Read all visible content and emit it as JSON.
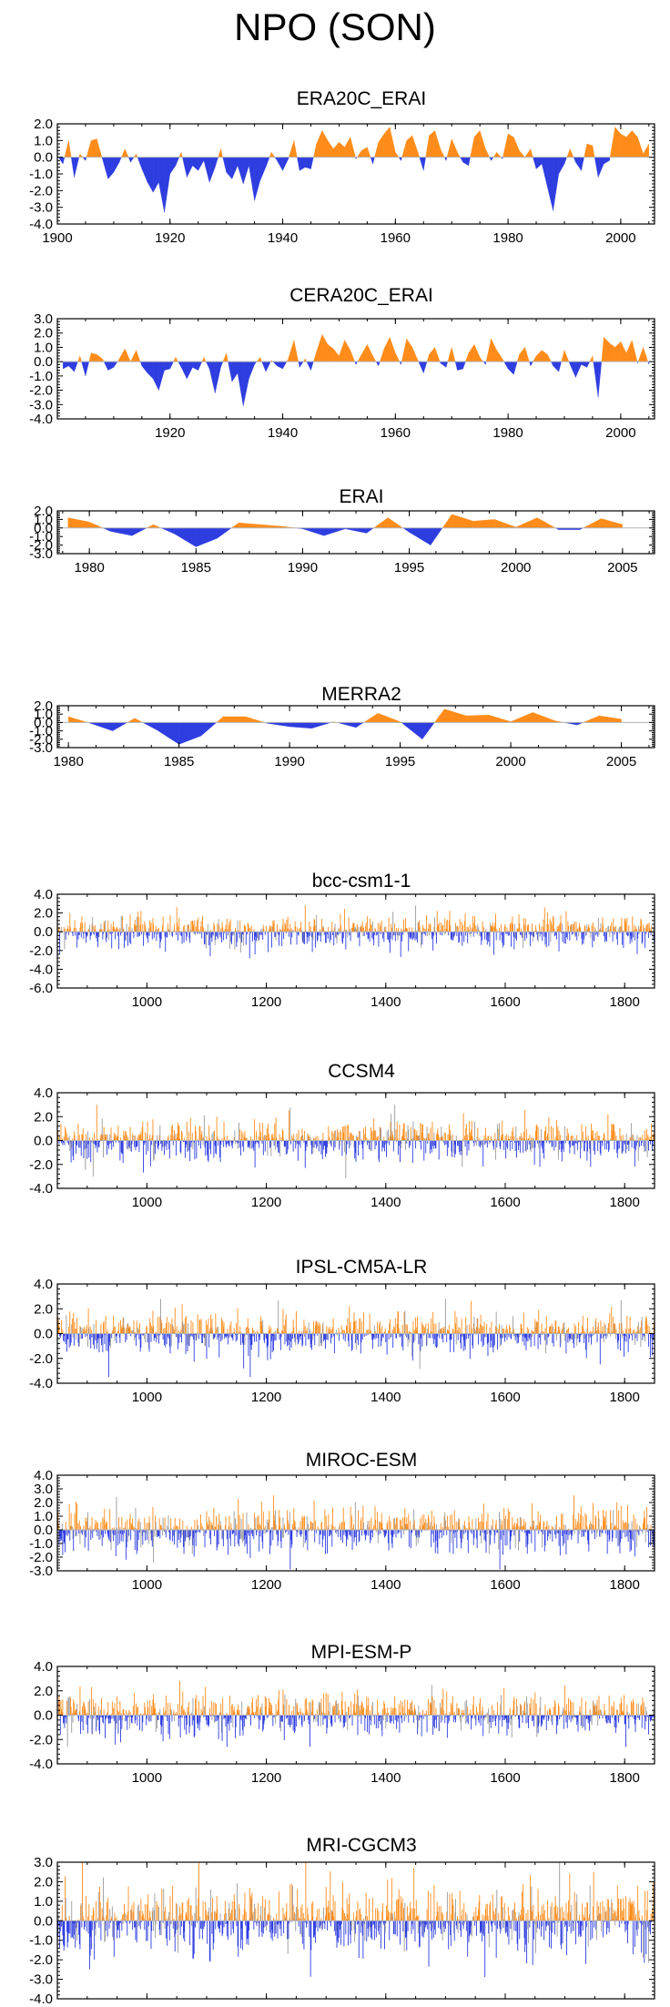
{
  "figure_title": "NPO (SON)",
  "colors": {
    "positive": "#ff8c1a",
    "negative": "#2e3de0",
    "axis": "#000000",
    "zero_line": "#b3b3b3"
  },
  "chart_data": [
    {
      "title": "ERA20C_ERAI",
      "type": "area",
      "xlim": [
        1900,
        2006
      ],
      "ylim": [
        -4.0,
        2.0
      ],
      "yticks": [
        "2.0",
        "1.0",
        "0.0",
        "-1.0",
        "-2.0",
        "-3.0",
        "-4.0"
      ],
      "xticks": [
        "1900",
        "1920",
        "1940",
        "1960",
        "1980",
        "2000"
      ],
      "x": [
        1900,
        1901,
        1902,
        1903,
        1904,
        1905,
        1906,
        1907,
        1908,
        1909,
        1910,
        1911,
        1912,
        1913,
        1914,
        1915,
        1916,
        1917,
        1918,
        1919,
        1920,
        1921,
        1922,
        1923,
        1924,
        1925,
        1926,
        1927,
        1928,
        1929,
        1930,
        1931,
        1932,
        1933,
        1934,
        1935,
        1936,
        1937,
        1938,
        1939,
        1940,
        1941,
        1942,
        1943,
        1944,
        1945,
        1946,
        1947,
        1948,
        1949,
        1950,
        1951,
        1952,
        1953,
        1954,
        1955,
        1956,
        1957,
        1958,
        1959,
        1960,
        1961,
        1962,
        1963,
        1964,
        1965,
        1966,
        1967,
        1968,
        1969,
        1970,
        1971,
        1972,
        1973,
        1974,
        1975,
        1976,
        1977,
        1978,
        1979,
        1980,
        1981,
        1982,
        1983,
        1984,
        1985,
        1986,
        1987,
        1988,
        1989,
        1990,
        1991,
        1992,
        1993,
        1994,
        1995,
        1996,
        1997,
        1998,
        1999,
        2000,
        2001,
        2002,
        2003,
        2004,
        2005
      ],
      "values": [
        0.1,
        -0.4,
        1.0,
        -1.2,
        0.2,
        -0.2,
        1.0,
        1.1,
        -0.1,
        -1.3,
        -0.9,
        -0.3,
        0.5,
        -0.3,
        0.2,
        -0.7,
        -1.5,
        -2.1,
        -1.5,
        -3.3,
        -1.0,
        -0.5,
        0.3,
        -1.2,
        -0.5,
        -0.8,
        -0.2,
        -1.5,
        -0.6,
        0.5,
        -0.9,
        -1.3,
        -0.5,
        -1.6,
        -0.5,
        -2.6,
        -1.4,
        -0.6,
        0.3,
        -0.2,
        -0.8,
        -0.1,
        1.0,
        -0.8,
        -0.6,
        -0.7,
        0.8,
        1.6,
        1.0,
        0.5,
        0.9,
        0.6,
        1.2,
        -0.1,
        0.4,
        0.6,
        -0.4,
        0.9,
        1.4,
        1.8,
        0.3,
        -0.2,
        1.0,
        1.3,
        0.3,
        -0.8,
        1.3,
        1.6,
        0.5,
        -0.2,
        1.1,
        0.3,
        -0.3,
        -0.5,
        1.2,
        1.6,
        0.5,
        -0.2,
        0.3,
        -0.1,
        1.4,
        1.2,
        0.4,
        0.0,
        0.5,
        -0.7,
        -0.4,
        -1.8,
        -3.2,
        -1.0,
        -0.4,
        0.5,
        -0.3,
        -0.8,
        0.8,
        0.7,
        -1.2,
        -0.4,
        -0.2,
        1.8,
        1.4,
        1.2,
        1.6,
        1.2,
        0.2,
        0.8
      ]
    },
    {
      "title": "CERA20C_ERAI",
      "type": "area",
      "xlim": [
        1900,
        2006
      ],
      "ylim": [
        -4.0,
        3.0
      ],
      "yticks": [
        "3.0",
        "2.0",
        "1.0",
        "0.0",
        "-1.0",
        "-2.0",
        "-3.0",
        "-4.0"
      ],
      "xticks": [
        "1920",
        "1940",
        "1960",
        "1980",
        "2000"
      ],
      "x": [
        1901,
        1902,
        1903,
        1904,
        1905,
        1906,
        1907,
        1908,
        1909,
        1910,
        1911,
        1912,
        1913,
        1914,
        1915,
        1916,
        1917,
        1918,
        1919,
        1920,
        1921,
        1922,
        1923,
        1924,
        1925,
        1926,
        1927,
        1928,
        1929,
        1930,
        1931,
        1932,
        1933,
        1934,
        1935,
        1936,
        1937,
        1938,
        1939,
        1940,
        1941,
        1942,
        1943,
        1944,
        1945,
        1946,
        1947,
        1948,
        1949,
        1950,
        1951,
        1952,
        1953,
        1954,
        1955,
        1956,
        1957,
        1958,
        1959,
        1960,
        1961,
        1962,
        1963,
        1964,
        1965,
        1966,
        1967,
        1968,
        1969,
        1970,
        1971,
        1972,
        1973,
        1974,
        1975,
        1976,
        1977,
        1978,
        1979,
        1980,
        1981,
        1982,
        1983,
        1984,
        1985,
        1986,
        1987,
        1988,
        1989,
        1990,
        1991,
        1992,
        1993,
        1994,
        1995,
        1996,
        1997,
        1998,
        1999,
        2000,
        2001,
        2002,
        2003,
        2004,
        2005
      ],
      "values": [
        -0.5,
        -0.3,
        -0.7,
        0.4,
        -1.0,
        0.6,
        0.5,
        0.2,
        -0.6,
        -0.4,
        0.2,
        0.9,
        0.0,
        0.8,
        -0.3,
        -0.8,
        -1.2,
        -2.0,
        -0.6,
        -0.5,
        0.3,
        -0.4,
        -1.2,
        -0.4,
        -0.6,
        0.3,
        -0.5,
        -2.2,
        -0.4,
        0.6,
        -1.4,
        -0.8,
        -3.1,
        -1.2,
        -0.2,
        0.3,
        -0.7,
        0.1,
        -0.3,
        -0.5,
        0.2,
        1.5,
        -0.4,
        0.2,
        -0.6,
        0.7,
        1.9,
        1.2,
        0.9,
        0.4,
        1.5,
        0.8,
        -0.2,
        0.5,
        1.2,
        0.4,
        -0.3,
        0.9,
        1.7,
        0.6,
        -0.2,
        1.6,
        1.0,
        0.1,
        -0.8,
        0.5,
        1.0,
        -0.1,
        -0.4,
        1.0,
        -0.6,
        -0.5,
        0.6,
        1.2,
        0.3,
        -0.2,
        1.6,
        0.8,
        0.2,
        -0.5,
        -0.9,
        0.5,
        1.0,
        -0.3,
        0.4,
        0.8,
        0.5,
        -0.3,
        -0.7,
        0.8,
        -0.2,
        -1.1,
        -0.2,
        -0.4,
        0.4,
        -2.5,
        1.7,
        1.3,
        1.0,
        1.4,
        0.6,
        1.5,
        -0.1,
        1.0,
        -0.2
      ]
    },
    {
      "title": "ERAI",
      "type": "area",
      "xlim": [
        1978.5,
        2006.5
      ],
      "ylim": [
        -3.0,
        2.0
      ],
      "yticks": [
        "2.0",
        "1.0",
        "0.0",
        "-1.0",
        "-2.0",
        "-3.0"
      ],
      "xticks": [
        "1980",
        "1985",
        "1990",
        "1995",
        "2000",
        "2005"
      ],
      "x": [
        1979,
        1980,
        1981,
        1982,
        1983,
        1984,
        1985,
        1986,
        1987,
        1988,
        1989,
        1990,
        1991,
        1992,
        1993,
        1994,
        1995,
        1996,
        1997,
        1998,
        1999,
        2000,
        2001,
        2002,
        2003,
        2004,
        2005
      ],
      "values": [
        1.2,
        0.7,
        -0.4,
        -0.9,
        0.4,
        -0.7,
        -2.2,
        -1.2,
        0.6,
        0.4,
        0.2,
        -0.1,
        -0.9,
        -0.1,
        -0.6,
        1.2,
        -0.5,
        -2.0,
        1.6,
        0.8,
        1.0,
        0.1,
        1.2,
        -0.2,
        -0.2,
        1.1,
        0.4
      ]
    },
    {
      "title": "MERRA2",
      "type": "area",
      "xlim": [
        1979.5,
        2006.5
      ],
      "ylim": [
        -3.0,
        2.0
      ],
      "yticks": [
        "2.0",
        "1.0",
        "0.0",
        "-1.0",
        "-2.0",
        "-3.0"
      ],
      "xticks": [
        "1980",
        "1985",
        "1990",
        "1995",
        "2000",
        "2005"
      ],
      "x": [
        1980,
        1981,
        1982,
        1983,
        1984,
        1985,
        1986,
        1987,
        1988,
        1989,
        1990,
        1991,
        1992,
        1993,
        1994,
        1995,
        1996,
        1997,
        1998,
        1999,
        2000,
        2001,
        2002,
        2003,
        2004,
        2005
      ],
      "values": [
        0.7,
        -0.1,
        -1.0,
        0.5,
        -0.9,
        -2.6,
        -1.6,
        0.7,
        0.7,
        -0.1,
        -0.5,
        -0.7,
        0.1,
        -0.6,
        1.1,
        0.1,
        -2.0,
        1.6,
        0.8,
        0.9,
        0.1,
        1.2,
        0.2,
        -0.3,
        0.8,
        0.4
      ]
    },
    {
      "title": "bcc-csm1-1",
      "type": "bar",
      "xlim": [
        850,
        1850
      ],
      "ylim": [
        -6.0,
        4.0
      ],
      "yticks": [
        "4.0",
        "2.0",
        "0.0",
        "-2.0",
        "-4.0",
        "-6.0"
      ],
      "xticks": [
        "1000",
        "1200",
        "1400",
        "1600",
        "1800"
      ],
      "series_length": 1001,
      "value_range_observed": [
        -5.8,
        2.8
      ]
    },
    {
      "title": "CCSM4",
      "type": "bar",
      "xlim": [
        850,
        1850
      ],
      "ylim": [
        -4.0,
        4.0
      ],
      "yticks": [
        "4.0",
        "2.0",
        "0.0",
        "-2.0",
        "-4.0"
      ],
      "xticks": [
        "1000",
        "1200",
        "1400",
        "1600",
        "1800"
      ],
      "series_length": 1001,
      "value_range_observed": [
        -3.2,
        3.0
      ]
    },
    {
      "title": "IPSL-CM5A-LR",
      "type": "bar",
      "xlim": [
        850,
        1850
      ],
      "ylim": [
        -4.0,
        4.0
      ],
      "yticks": [
        "4.0",
        "2.0",
        "0.0",
        "-2.0",
        "-4.0"
      ],
      "xticks": [
        "1000",
        "1200",
        "1400",
        "1600",
        "1800"
      ],
      "series_length": 1001,
      "value_range_observed": [
        -3.5,
        2.8
      ]
    },
    {
      "title": "MIROC-ESM",
      "type": "bar",
      "xlim": [
        850,
        1850
      ],
      "ylim": [
        -3.0,
        4.0
      ],
      "yticks": [
        "4.0",
        "3.0",
        "2.0",
        "1.0",
        "0.0",
        "-1.0",
        "-2.0",
        "-3.0"
      ],
      "xticks": [
        "1000",
        "1200",
        "1400",
        "1600",
        "1800"
      ],
      "series_length": 1001,
      "value_range_observed": [
        -2.9,
        3.3
      ]
    },
    {
      "title": "MPI-ESM-P",
      "type": "bar",
      "xlim": [
        850,
        1850
      ],
      "ylim": [
        -4.0,
        4.0
      ],
      "yticks": [
        "4.0",
        "2.0",
        "0.0",
        "-2.0",
        "-4.0"
      ],
      "xticks": [
        "1000",
        "1200",
        "1400",
        "1600",
        "1800"
      ],
      "series_length": 1001,
      "value_range_observed": [
        -2.6,
        2.8
      ]
    },
    {
      "title": "MRI-CGCM3",
      "type": "bar",
      "xlim": [
        850,
        1850
      ],
      "ylim": [
        -4.0,
        3.0
      ],
      "yticks": [
        "3.0",
        "2.0",
        "1.0",
        "0.0",
        "-1.0",
        "-2.0",
        "-3.0",
        "-4.0"
      ],
      "xticks": [
        "1000",
        "1200",
        "1400",
        "1600",
        "1800"
      ],
      "series_length": 1001,
      "value_range_observed": [
        -3.2,
        3.0
      ]
    }
  ]
}
